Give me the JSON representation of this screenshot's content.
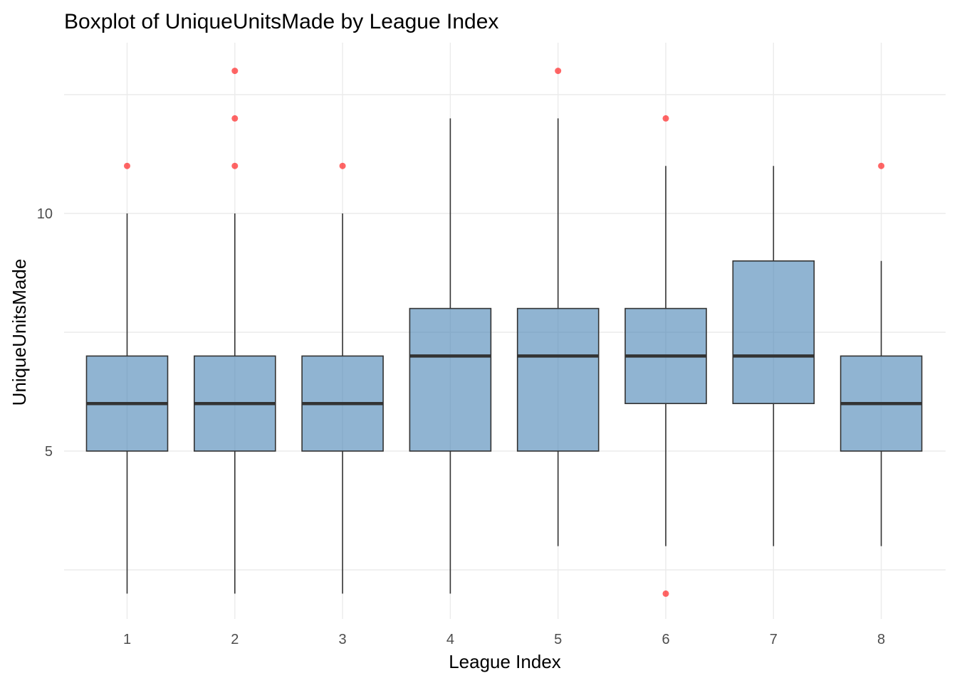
{
  "chart_data": {
    "type": "boxplot",
    "title": "Boxplot of UniqueUnitsMade by League Index",
    "xlabel": "League Index",
    "ylabel": "UniqueUnitsMade",
    "categories": [
      "1",
      "2",
      "3",
      "4",
      "5",
      "6",
      "7",
      "8"
    ],
    "y_ticks": [
      5,
      10
    ],
    "ylim": [
      1,
      13.5
    ],
    "grid": true,
    "box_color": "#4682b4",
    "outlier_color": "#ff0000",
    "boxes": [
      {
        "category": "1",
        "whisker_low": 2,
        "q1": 5,
        "median": 6,
        "q3": 7,
        "whisker_high": 10,
        "outliers": [
          11
        ]
      },
      {
        "category": "2",
        "whisker_low": 2,
        "q1": 5,
        "median": 6,
        "q3": 7,
        "whisker_high": 10,
        "outliers": [
          11,
          12,
          13
        ]
      },
      {
        "category": "3",
        "whisker_low": 2,
        "q1": 5,
        "median": 6,
        "q3": 7,
        "whisker_high": 10,
        "outliers": [
          11
        ]
      },
      {
        "category": "4",
        "whisker_low": 2,
        "q1": 5,
        "median": 7,
        "q3": 8,
        "whisker_high": 12,
        "outliers": []
      },
      {
        "category": "5",
        "whisker_low": 3,
        "q1": 5,
        "median": 7,
        "q3": 8,
        "whisker_high": 12,
        "outliers": [
          13
        ]
      },
      {
        "category": "6",
        "whisker_low": 3,
        "q1": 6,
        "median": 7,
        "q3": 8,
        "whisker_high": 11,
        "outliers": [
          12,
          2
        ]
      },
      {
        "category": "7",
        "whisker_low": 3,
        "q1": 6,
        "median": 7,
        "q3": 9,
        "whisker_high": 11,
        "outliers": []
      },
      {
        "category": "8",
        "whisker_low": 3,
        "q1": 5,
        "median": 6,
        "q3": 7,
        "whisker_high": 9,
        "outliers": [
          11
        ]
      }
    ]
  }
}
